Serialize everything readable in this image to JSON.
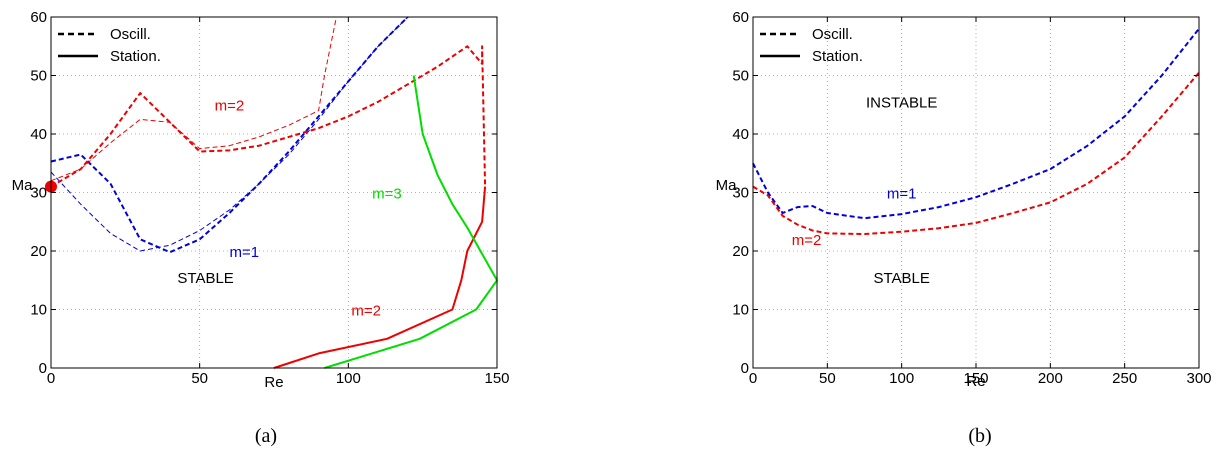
{
  "chart_data": [
    {
      "type": "line",
      "xlabel": "Re",
      "ylabel": "Ma",
      "xlim": [
        0,
        150
      ],
      "ylim": [
        0,
        60
      ],
      "xticks": [
        0,
        50,
        100,
        150
      ],
      "yticks": [
        0,
        10,
        20,
        30,
        40,
        50,
        60
      ],
      "grid": true,
      "caption": "(a)",
      "legend": {
        "placement": "top-left",
        "entries": [
          {
            "label": "Oscill.",
            "style": "dashed"
          },
          {
            "label": "Station.",
            "style": "solid"
          }
        ]
      },
      "series": [
        {
          "color": "#0000dd",
          "style": "dashed",
          "width": "thick",
          "x": [
            0,
            10,
            20,
            30,
            40,
            50,
            60,
            70,
            80,
            90,
            100,
            110,
            120
          ],
          "y": [
            35.3,
            36.5,
            31.5,
            22,
            19.8,
            22,
            26.5,
            31.5,
            37,
            43,
            49,
            55,
            60
          ]
        },
        {
          "color": "#0000dd",
          "style": "dashed",
          "width": "thin",
          "x": [
            0,
            10,
            20,
            30,
            40,
            50,
            60,
            70,
            80,
            90,
            100,
            110,
            120
          ],
          "y": [
            33.5,
            28,
            23,
            20,
            21,
            23.5,
            27,
            31.5,
            36.5,
            42.5,
            49,
            55,
            60
          ]
        },
        {
          "color": "#ee0000",
          "style": "dashed",
          "width": "thick",
          "x": [
            0,
            10,
            20,
            30,
            40,
            50,
            60,
            70,
            80,
            90,
            100,
            110,
            120,
            130,
            140,
            145,
            145,
            146
          ],
          "y": [
            31,
            34,
            40,
            47,
            42,
            37,
            37.2,
            38,
            39.5,
            41,
            43,
            45.5,
            48.5,
            51.5,
            55,
            52,
            55,
            31
          ]
        },
        {
          "color": "#ee0000",
          "style": "dashed",
          "width": "thin",
          "x": [
            0,
            10,
            20,
            30,
            40,
            50,
            60,
            70,
            80,
            90,
            92,
            96
          ],
          "y": [
            32,
            34,
            38.5,
            42.5,
            42,
            37.5,
            38,
            39.5,
            41.5,
            44,
            50,
            60
          ]
        },
        {
          "color": "#ee0000",
          "style": "solid",
          "width": "thick",
          "x": [
            75,
            90,
            113,
            135,
            138,
            140,
            145,
            146
          ],
          "y": [
            0,
            2.5,
            5,
            10,
            15,
            20,
            25,
            31
          ]
        },
        {
          "color": "#00dd00",
          "style": "solid",
          "width": "thick",
          "x": [
            122,
            125,
            130,
            135,
            140,
            145,
            150,
            150,
            143,
            124,
            92
          ],
          "y": [
            50,
            40,
            33,
            28,
            24,
            19.5,
            15,
            15,
            10,
            5,
            0
          ]
        }
      ],
      "points": [
        {
          "x": 0,
          "y": 31,
          "color": "#ee0000"
        }
      ],
      "annotations": [
        {
          "text": "m=2",
          "x": 60,
          "y": 44,
          "color": "#ee0000"
        },
        {
          "text": "m=3",
          "x": 113,
          "y": 29,
          "color": "#00dd00"
        },
        {
          "text": "m=1",
          "x": 65,
          "y": 19,
          "color": "#0000dd"
        },
        {
          "text": "STABLE",
          "x": 52,
          "y": 14.5,
          "color": "#000000"
        },
        {
          "text": "m=2",
          "x": 106,
          "y": 9,
          "color": "#ee0000"
        }
      ]
    },
    {
      "type": "line",
      "xlabel": "Re",
      "ylabel": "Ma",
      "xlim": [
        0,
        300
      ],
      "ylim": [
        0,
        60
      ],
      "xticks": [
        0,
        50,
        100,
        150,
        200,
        250,
        300
      ],
      "yticks": [
        0,
        10,
        20,
        30,
        40,
        50,
        60
      ],
      "grid": true,
      "caption": "(b)",
      "legend": {
        "placement": "top-left",
        "entries": [
          {
            "label": "Oscill.",
            "style": "dashed"
          },
          {
            "label": "Station.",
            "style": "solid"
          }
        ]
      },
      "series": [
        {
          "color": "#0000dd",
          "style": "dashed",
          "width": "thick",
          "x": [
            0,
            10,
            20,
            30,
            40,
            50,
            75,
            100,
            125,
            150,
            175,
            200,
            225,
            250,
            275,
            300
          ],
          "y": [
            35,
            30,
            26.5,
            27.5,
            27.7,
            26.5,
            25.6,
            26.3,
            27.5,
            29.2,
            31.5,
            34,
            38,
            43,
            50,
            58
          ]
        },
        {
          "color": "#ee0000",
          "style": "dashed",
          "width": "thick",
          "x": [
            0,
            10,
            20,
            30,
            40,
            50,
            75,
            100,
            125,
            150,
            175,
            200,
            225,
            250,
            275,
            300
          ],
          "y": [
            31,
            29.5,
            26,
            24.5,
            23.5,
            23,
            22.9,
            23.3,
            23.9,
            24.8,
            26.5,
            28.3,
            31.5,
            36,
            43,
            50.5
          ]
        }
      ],
      "annotations": [
        {
          "text": "INSTABLE",
          "x": 100,
          "y": 44.5,
          "color": "#000000"
        },
        {
          "text": "m=1",
          "x": 100,
          "y": 29,
          "color": "#0000dd"
        },
        {
          "text": "m=2",
          "x": 36,
          "y": 21,
          "color": "#ee0000"
        },
        {
          "text": "STABLE",
          "x": 100,
          "y": 14.5,
          "color": "#000000"
        }
      ]
    }
  ]
}
